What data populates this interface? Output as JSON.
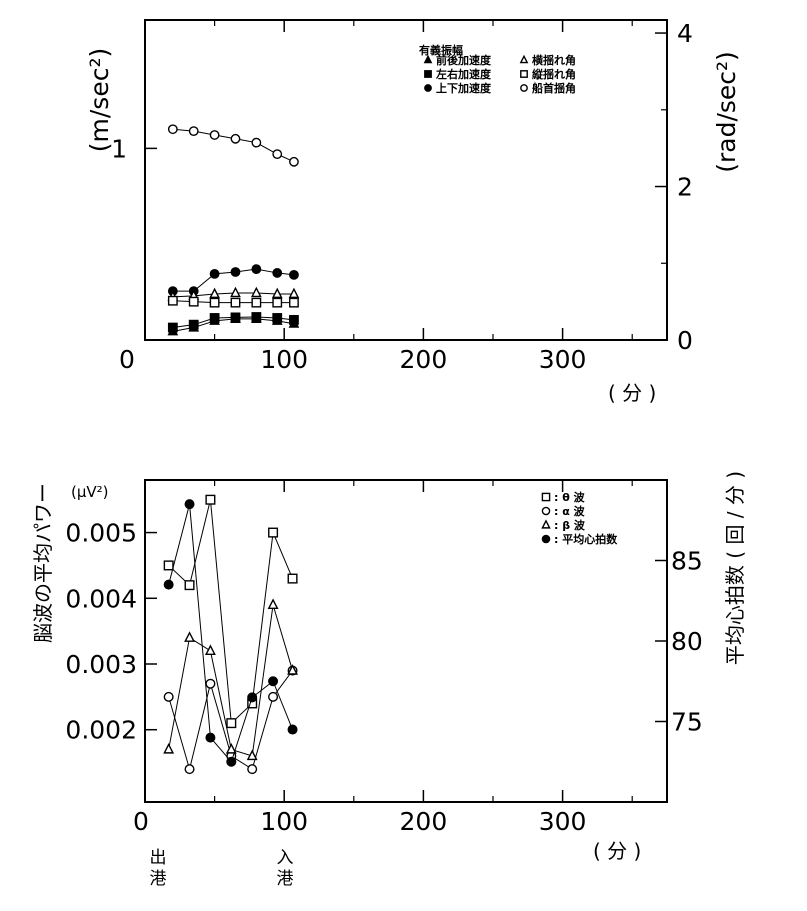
{
  "chart_data": [
    {
      "type": "scatter",
      "title": "有義振幅",
      "x_unit_label": "( 分 )",
      "xlim": [
        0,
        375
      ],
      "x_ticks": [
        "0",
        "100",
        "200",
        "300"
      ],
      "y_left_label": "(m/sec²)",
      "y_left_lim": [
        0,
        1.67
      ],
      "y_left_ticks": [
        "0",
        "1"
      ],
      "y_right_label": "(rad/sec²)",
      "y_right_lim": [
        0,
        4.17
      ],
      "y_right_ticks": [
        "0",
        "2",
        "4"
      ],
      "legend": {
        "position": "top-right",
        "entries": [
          "前後加速度",
          "左右加速度",
          "上下加速度",
          "横揺れ角",
          "縦揺れ角",
          "船首揺角"
        ]
      },
      "series": [
        {
          "name": "前後加速度",
          "marker": "filled-triangle",
          "axis": "left",
          "x": [
            20,
            35,
            50,
            65,
            80,
            95,
            107
          ],
          "values": [
            0.045,
            0.065,
            0.1,
            0.11,
            0.11,
            0.1,
            0.085
          ]
        },
        {
          "name": "左右加速度",
          "marker": "filled-square",
          "axis": "left",
          "x": [
            20,
            35,
            50,
            65,
            80,
            95,
            107
          ],
          "values": [
            0.065,
            0.08,
            0.115,
            0.118,
            0.12,
            0.115,
            0.105
          ]
        },
        {
          "name": "上下加速度",
          "marker": "filled-circle",
          "axis": "left",
          "x": [
            20,
            35,
            50,
            65,
            80,
            95,
            107
          ],
          "values": [
            0.255,
            0.255,
            0.345,
            0.355,
            0.37,
            0.35,
            0.34
          ]
        },
        {
          "name": "横揺れ角",
          "marker": "open-triangle",
          "axis": "left",
          "x": [
            20,
            35,
            50,
            65,
            80,
            95,
            107
          ],
          "values": [
            0.225,
            0.23,
            0.24,
            0.245,
            0.245,
            0.24,
            0.24
          ]
        },
        {
          "name": "縦揺れ角",
          "marker": "open-square",
          "axis": "left",
          "x": [
            20,
            35,
            50,
            65,
            80,
            95,
            107
          ],
          "values": [
            0.205,
            0.2,
            0.195,
            0.195,
            0.195,
            0.195,
            0.195
          ]
        },
        {
          "name": "船首揺角",
          "marker": "open-circle",
          "axis": "left",
          "x": [
            20,
            35,
            50,
            65,
            80,
            95,
            107
          ],
          "values": [
            1.1,
            1.09,
            1.07,
            1.05,
            1.03,
            0.97,
            0.93
          ]
        }
      ]
    },
    {
      "type": "line",
      "x_unit_label": "( 分 )",
      "xlim": [
        0,
        375
      ],
      "x_ticks": [
        "0",
        "100",
        "200",
        "300"
      ],
      "y_left_label": "脳波の平均パワー",
      "y_left_unit": "(μV²)",
      "y_left_lim": [
        0.0009,
        0.0058
      ],
      "y_left_ticks": [
        "0.002",
        "0.003",
        "0.004",
        "0.005"
      ],
      "y_right_label": "平均心拍数 ( 回 / 分 )",
      "y_right_lim": [
        70,
        90
      ],
      "y_right_ticks": [
        "75",
        "80",
        "85"
      ],
      "annotations": {
        "departure": "出港",
        "arrival": "入港"
      },
      "legend": {
        "position": "top-right",
        "entries": [
          ": θ 波",
          ": α 波",
          ": β 波",
          ": 平均心拍数"
        ]
      },
      "series": [
        {
          "name": "θ 波",
          "marker": "open-square",
          "axis": "left",
          "x": [
            17,
            32,
            47,
            62,
            77,
            92,
            106
          ],
          "values": [
            0.0045,
            0.0042,
            0.0055,
            0.0021,
            0.0024,
            0.005,
            0.0043
          ]
        },
        {
          "name": "α 波",
          "marker": "open-circle",
          "axis": "left",
          "x": [
            17,
            32,
            47,
            62,
            77,
            92,
            106
          ],
          "values": [
            0.0025,
            0.0014,
            0.0027,
            0.0016,
            0.0014,
            0.0025,
            0.0029
          ]
        },
        {
          "name": "β 波",
          "marker": "open-triangle",
          "axis": "left",
          "x": [
            17,
            32,
            47,
            62,
            77,
            92,
            106
          ],
          "values": [
            0.0017,
            0.0034,
            0.0032,
            0.0017,
            0.0016,
            0.0039,
            0.0029
          ]
        },
        {
          "name": "平均心拍数",
          "marker": "filled-circle",
          "axis": "right",
          "x": [
            17,
            32,
            47,
            62,
            77,
            92,
            106
          ],
          "values": [
            83.5,
            88.5,
            74.0,
            72.5,
            76.5,
            77.5,
            74.5
          ]
        }
      ]
    }
  ]
}
